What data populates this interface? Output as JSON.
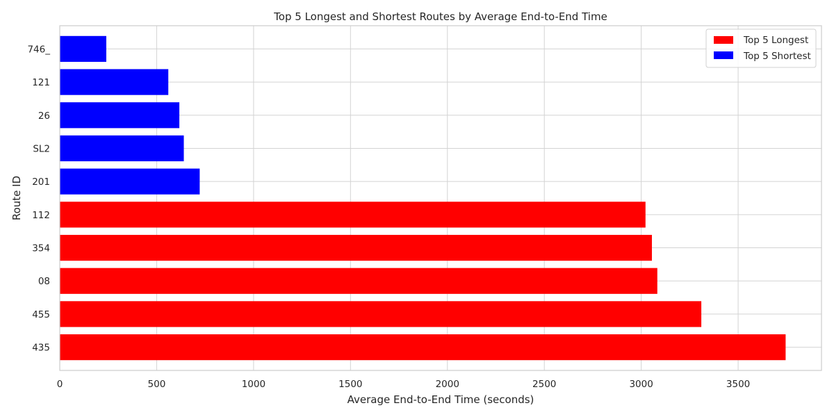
{
  "chart_data": {
    "type": "bar",
    "orientation": "horizontal",
    "title": "Top 5 Longest and Shortest Routes by Average End-to-End Time",
    "xlabel": "Average End-to-End Time (seconds)",
    "ylabel": "Route ID",
    "xlim": [
      0,
      3930
    ],
    "xticks": [
      0,
      500,
      1000,
      1500,
      2000,
      2500,
      3000,
      3500
    ],
    "grid": true,
    "legend_position": "top-right",
    "categories": [
      "435",
      "455",
      "08",
      "354",
      "112",
      "201",
      "SL2",
      "26",
      "121",
      "746_"
    ],
    "values": [
      3745,
      3310,
      3083,
      3055,
      3022,
      722,
      640,
      617,
      560,
      240
    ],
    "groups": [
      "Top 5 Longest",
      "Top 5 Longest",
      "Top 5 Longest",
      "Top 5 Longest",
      "Top 5 Longest",
      "Top 5 Shortest",
      "Top 5 Shortest",
      "Top 5 Shortest",
      "Top 5 Shortest",
      "Top 5 Shortest"
    ],
    "series": [
      {
        "name": "Top 5 Longest",
        "color": "#ff0000"
      },
      {
        "name": "Top 5 Shortest",
        "color": "#0000ff"
      }
    ]
  }
}
